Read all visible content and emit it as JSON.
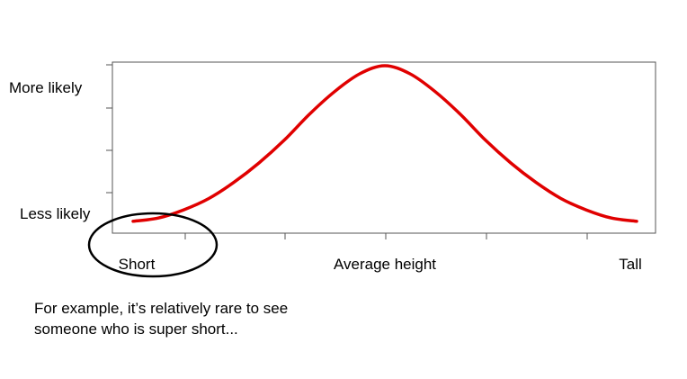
{
  "chart_data": {
    "type": "line",
    "title": "",
    "xlabel": "",
    "ylabel": "",
    "x_tick_labels": [
      "Short",
      "Average height",
      "Tall"
    ],
    "y_tick_labels": [
      "Less likely",
      "More likely"
    ],
    "series": [
      {
        "color": "#e00000",
        "x": [
          -2.5,
          -2.25,
          -2.0,
          -1.75,
          -1.5,
          -1.25,
          -1.0,
          -0.75,
          -0.5,
          -0.25,
          0.0,
          0.25,
          0.5,
          0.75,
          1.0,
          1.25,
          1.5,
          1.75,
          2.0,
          2.25,
          2.5
        ],
        "values": [
          0.04,
          0.06,
          0.11,
          0.18,
          0.28,
          0.4,
          0.54,
          0.7,
          0.84,
          0.95,
          1.0,
          0.95,
          0.84,
          0.7,
          0.54,
          0.4,
          0.28,
          0.18,
          0.11,
          0.06,
          0.04
        ]
      }
    ],
    "xlim": [
      -2.5,
      2.5
    ],
    "ylim": [
      0,
      1
    ],
    "grid": false,
    "annotations": [
      {
        "shape": "ellipse",
        "color": "#000000",
        "target": "Short"
      }
    ]
  },
  "note": {
    "text": "For example, it’s relatively rare to see someone who is super short..."
  }
}
